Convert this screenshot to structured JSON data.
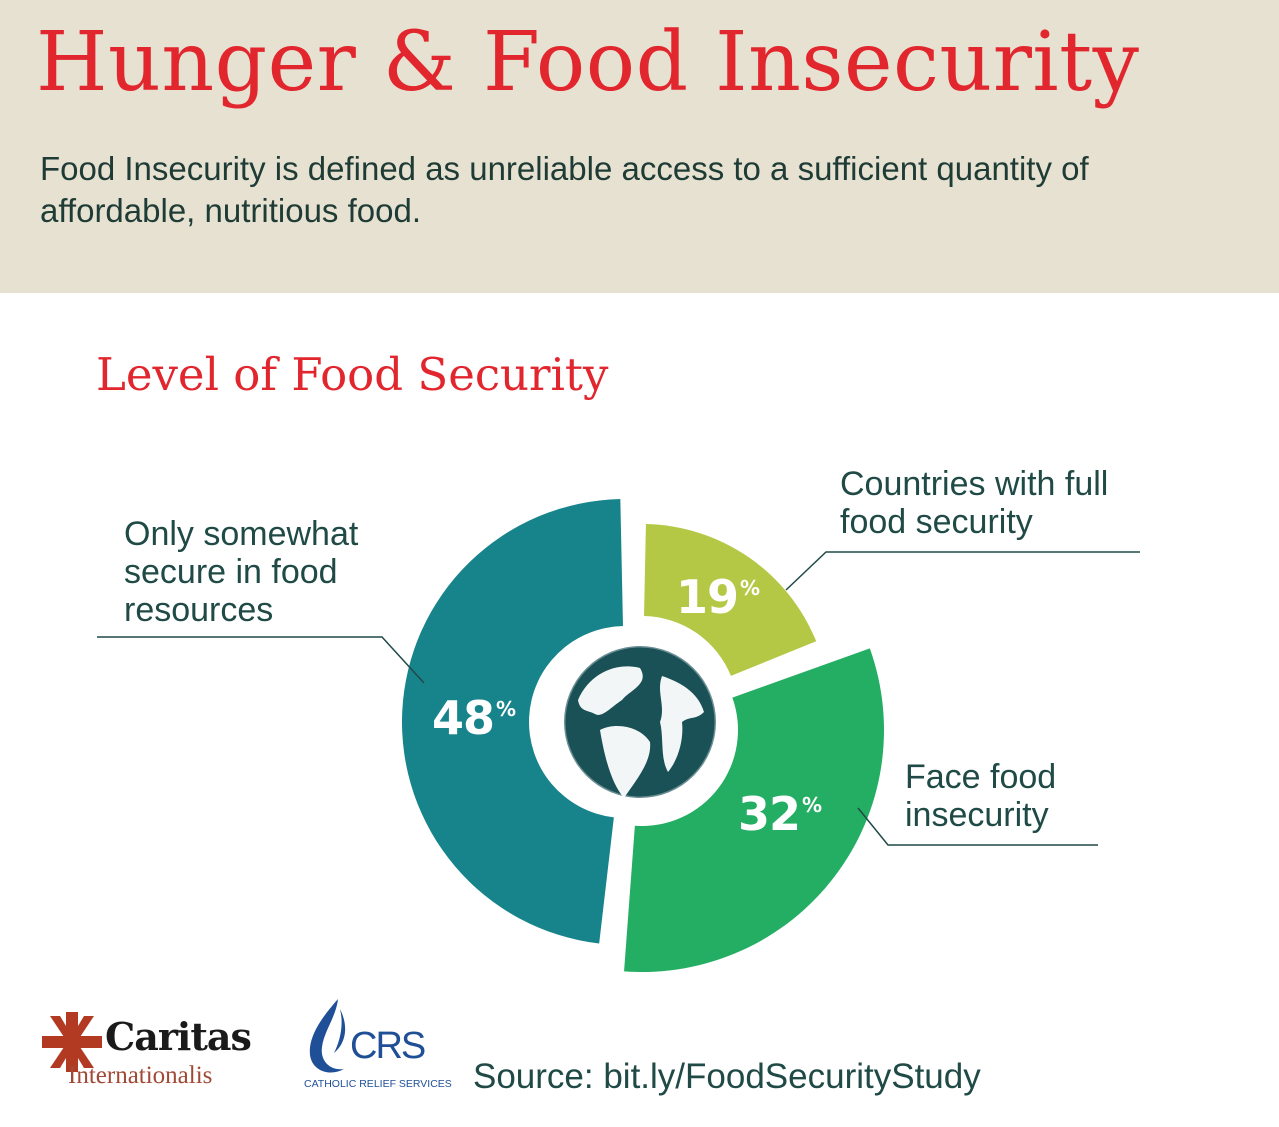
{
  "header": {
    "title": "Hunger & Food Insecurity",
    "subtitle": "Food Insecurity is defined as unreliable access to a sufficient quantity of affordable, nutritious food."
  },
  "chart_data": {
    "type": "pie",
    "title": "Level of Food Security",
    "slices": [
      {
        "label": "Only somewhat secure in food resources",
        "value": 48,
        "display": "48",
        "color": "#17848b"
      },
      {
        "label": "Countries with full food security",
        "value": 19,
        "display": "19",
        "color": "#b4c845"
      },
      {
        "label": "Face food insecurity",
        "value": 32,
        "display": "32",
        "color": "#24ae63"
      }
    ],
    "percent_sign": "%",
    "center_icon": "globe-icon"
  },
  "footer": {
    "caritas_name": "Caritas",
    "caritas_sub": "Internationalis",
    "crs_name": "CRS",
    "crs_sub": "CATHOLIC RELIEF SERVICES",
    "source": "Source: bit.ly/FoodSecurityStudy"
  },
  "colors": {
    "title_red": "#e2262e",
    "header_bg": "#e6e1d1",
    "text_dark": "#1f4a46",
    "globe": "#1a5157"
  }
}
